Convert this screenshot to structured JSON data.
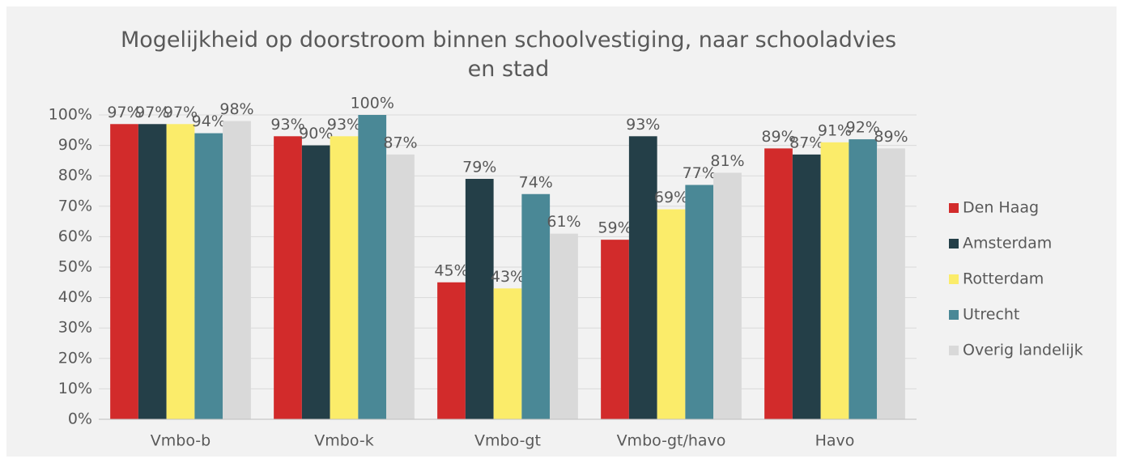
{
  "chart_data": {
    "type": "bar",
    "title": "Mogelijkheid op doorstroom binnen schoolvestiging, naar schooladvies en stad",
    "categories": [
      "Vmbo-b",
      "Vmbo-k",
      "Vmbo-gt",
      "Vmbo-gt/havo",
      "Havo"
    ],
    "series": [
      {
        "name": "Den Haag",
        "color": "#d22b2b",
        "values": [
          97,
          93,
          45,
          59,
          89
        ],
        "value_labels": [
          "97%",
          "93%",
          "45%",
          "59%",
          "89%"
        ]
      },
      {
        "name": "Amsterdam",
        "color": "#243f48",
        "values": [
          97,
          90,
          79,
          93,
          87
        ],
        "value_labels": [
          "97%",
          "90%",
          "79%",
          "93%",
          "87%"
        ]
      },
      {
        "name": "Rotterdam",
        "color": "#fbec6a",
        "values": [
          97,
          93,
          43,
          69,
          91
        ],
        "value_labels": [
          "97%",
          "93%",
          "43%",
          "69%",
          "91%"
        ]
      },
      {
        "name": "Utrecht",
        "color": "#4a8896",
        "values": [
          94,
          100,
          74,
          77,
          92
        ],
        "value_labels": [
          "94%",
          "100%",
          "74%",
          "77%",
          "92%"
        ]
      },
      {
        "name": "Overig landelijk",
        "color": "#d9d9d9",
        "values": [
          98,
          87,
          61,
          81,
          89
        ],
        "value_labels": [
          "98%",
          "87%",
          "61%",
          "81%",
          "89%"
        ]
      }
    ],
    "ylim": [
      0,
      100
    ],
    "yticks": [
      {
        "value": 0,
        "label": "0%"
      },
      {
        "value": 10,
        "label": "10%"
      },
      {
        "value": 20,
        "label": "20%"
      },
      {
        "value": 30,
        "label": "30%"
      },
      {
        "value": 40,
        "label": "40%"
      },
      {
        "value": 50,
        "label": "50%"
      },
      {
        "value": 60,
        "label": "60%"
      },
      {
        "value": 70,
        "label": "70%"
      },
      {
        "value": 80,
        "label": "80%"
      },
      {
        "value": 90,
        "label": "90%"
      },
      {
        "value": 100,
        "label": "100%"
      }
    ],
    "grid": true,
    "legend": "right"
  }
}
